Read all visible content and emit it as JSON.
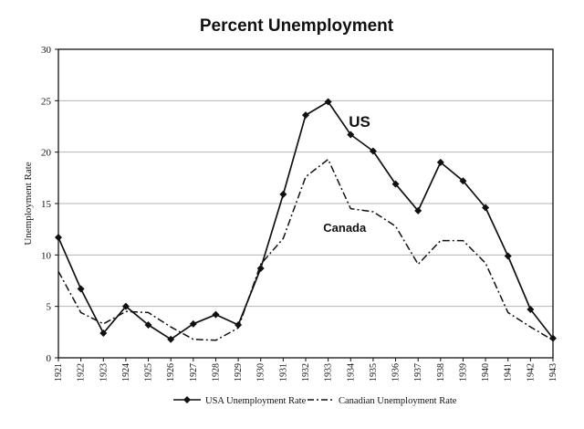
{
  "chart_data": {
    "type": "line",
    "title": "Percent Unemployment",
    "xlabel": "",
    "ylabel": "Unemployment Rate",
    "ylim": [
      0,
      30
    ],
    "yticks": [
      0,
      5,
      10,
      15,
      20,
      25,
      30
    ],
    "grid": true,
    "legend_position": "bottom",
    "categories": [
      "1921",
      "1922",
      "1923",
      "1924",
      "1925",
      "1926",
      "1927",
      "1928",
      "1929",
      "1930",
      "1931",
      "1932",
      "1933",
      "1934",
      "1935",
      "1936",
      "1937",
      "1938",
      "1939",
      "1940",
      "1941",
      "1942",
      "1943"
    ],
    "series": [
      {
        "name": "USA Unemployment Rate",
        "color": "#111111",
        "line_style": "solid",
        "marker": "diamond",
        "values": [
          11.7,
          6.7,
          2.4,
          5.0,
          3.2,
          1.8,
          3.3,
          4.2,
          3.2,
          8.7,
          15.9,
          23.6,
          24.9,
          21.7,
          20.1,
          16.9,
          14.3,
          19.0,
          17.2,
          14.6,
          9.9,
          4.7,
          1.9
        ]
      },
      {
        "name": "Canadian Unemployment Rate",
        "color": "#111111",
        "line_style": "dashdot",
        "marker": "none",
        "values": [
          8.4,
          4.4,
          3.3,
          4.5,
          4.4,
          3.0,
          1.8,
          1.7,
          2.9,
          9.1,
          11.6,
          17.6,
          19.3,
          14.5,
          14.2,
          12.8,
          9.1,
          11.4,
          11.4,
          9.2,
          4.4,
          3.0,
          1.7
        ]
      }
    ],
    "annotations": [
      {
        "text": "US",
        "x": "1934",
        "y": 23.0
      },
      {
        "text": "Canada",
        "x": "1934",
        "y": 12.8
      }
    ]
  }
}
